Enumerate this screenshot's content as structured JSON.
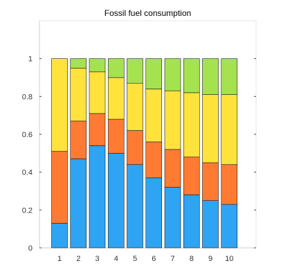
{
  "chart_data": {
    "type": "bar",
    "stacked": true,
    "title": "Fossil fuel consumption",
    "xlabel": "",
    "ylabel": "",
    "categories": [
      "1",
      "2",
      "3",
      "4",
      "5",
      "6",
      "7",
      "8",
      "9",
      "10"
    ],
    "ylim": [
      0,
      1.2
    ],
    "yticks": [
      "0",
      "0.2",
      "0.4",
      "0.6",
      "0.8",
      "1"
    ],
    "grid": false,
    "series": [
      {
        "color": "#2fa4f3",
        "values": [
          0.13,
          0.47,
          0.54,
          0.5,
          0.44,
          0.37,
          0.32,
          0.28,
          0.25,
          0.23
        ]
      },
      {
        "color": "#ff7b33",
        "values": [
          0.38,
          0.2,
          0.17,
          0.18,
          0.18,
          0.19,
          0.2,
          0.2,
          0.2,
          0.21
        ]
      },
      {
        "color": "#ffe23c",
        "values": [
          0.49,
          0.28,
          0.22,
          0.22,
          0.25,
          0.28,
          0.31,
          0.34,
          0.36,
          0.37
        ]
      },
      {
        "color": "#a5e250",
        "values": [
          0.0,
          0.05,
          0.07,
          0.1,
          0.13,
          0.16,
          0.17,
          0.18,
          0.19,
          0.19
        ]
      }
    ]
  }
}
